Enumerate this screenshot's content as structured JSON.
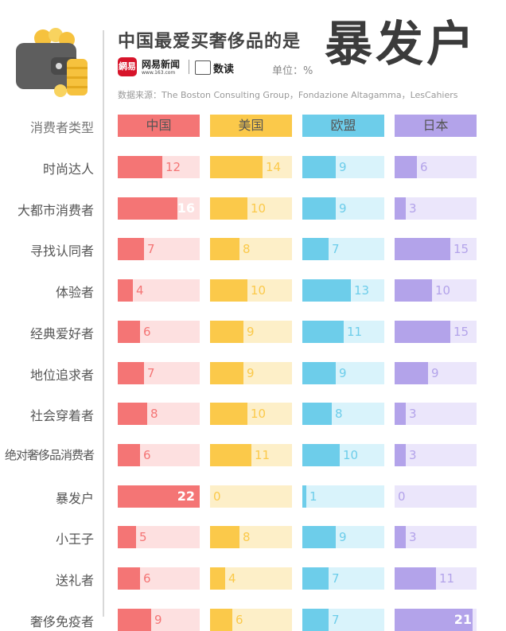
{
  "header": {
    "title": "中国最爱买奢侈品的是",
    "highlight": "暴发户",
    "logo_text": "網易",
    "logo_name": "网易新闻",
    "logo_url": "www.163.com",
    "logo2_name": "数读",
    "unit": "单位：%",
    "source": "数据来源：The Boston Consulting Group，Fondazione Altagamma，LesCahiers"
  },
  "chart_data": {
    "type": "bar",
    "row_header": "消费者类型",
    "categories": [
      "时尚达人",
      "大都市消费者",
      "寻找认同者",
      "体验者",
      "经典爱好者",
      "地位追求者",
      "社会穿着者",
      "绝对奢侈品消费者",
      "暴发户",
      "小王子",
      "送礼者",
      "奢侈免疫者"
    ],
    "series": [
      {
        "name": "中国",
        "color": "#f47575",
        "light": "#fde0e0",
        "values": [
          12,
          16,
          7,
          4,
          6,
          7,
          8,
          6,
          22,
          5,
          6,
          9
        ]
      },
      {
        "name": "美国",
        "color": "#fbc94a",
        "light": "#fdefc8",
        "values": [
          14,
          10,
          8,
          10,
          9,
          9,
          10,
          11,
          0,
          8,
          4,
          6
        ]
      },
      {
        "name": "欧盟",
        "color": "#6dcdea",
        "light": "#d9f3fb",
        "values": [
          9,
          9,
          7,
          13,
          11,
          9,
          8,
          10,
          1,
          9,
          7,
          7
        ]
      },
      {
        "name": "日本",
        "color": "#b3a3ea",
        "light": "#ebe6fb",
        "values": [
          6,
          3,
          15,
          10,
          15,
          9,
          3,
          3,
          0,
          3,
          11,
          21
        ]
      }
    ],
    "xlim": [
      0,
      22
    ]
  }
}
